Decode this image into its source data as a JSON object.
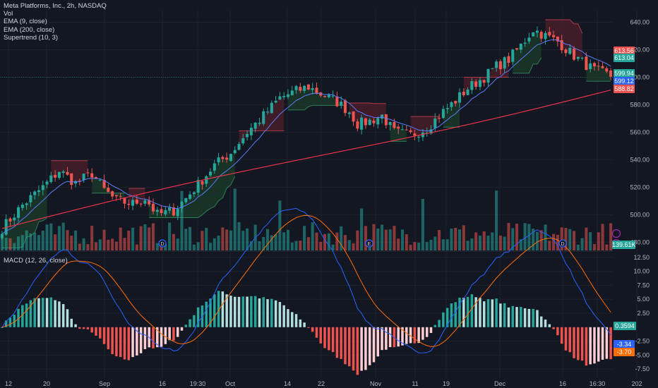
{
  "legend": {
    "title": "Meta Platforms, Inc., 2h, NASDAQ",
    "vol": "Vol",
    "ema_fast": "EMA (9, close)",
    "ema_slow": "EMA (200, close)",
    "supertrend": "Supertrend (10, 3)",
    "macd": "MACD (12, 26, close)"
  },
  "badges": {
    "st_upper": "613.56",
    "st_lower": "613.04",
    "price": "599.94",
    "ema9": "599.12",
    "ema200": "588.82",
    "volume": "139.61K",
    "histogram": "0.3594",
    "macd": "-3.34",
    "signal": "-3.70"
  },
  "colors": {
    "background": "#131722",
    "up": "#26a69a",
    "down": "#ef5350",
    "ema9": "#5b7cf5",
    "ema200": "#e8334a",
    "st_up_fill": "#1b3a2a",
    "st_down_fill": "#4a1e2a",
    "macd_line": "#2962ff",
    "signal_line": "#ff6d00",
    "axis_text": "#b2b5be"
  },
  "chart_data": {
    "type": "candlestick",
    "symbol": "META",
    "interval": "2h",
    "x_ticks": [
      "12",
      "20",
      "Sep",
      "16",
      "19:30",
      "Oct",
      "14",
      "22",
      "Nov",
      "11",
      "19",
      "Dec",
      "16",
      "16:30",
      "202"
    ],
    "price_axis": {
      "ticks": [
        "640.00",
        "620.00",
        "600.00",
        "580.00",
        "560.00",
        "540.00",
        "520.00",
        "500.00",
        "480.00"
      ],
      "ylim": [
        474,
        650
      ]
    },
    "macd_axis": {
      "ticks": [
        "12.50",
        "10.00",
        "7.50",
        "5.00",
        "2.50",
        "-2.50",
        "-5.00",
        "-7.50"
      ],
      "ylim": [
        -9,
        13.5
      ]
    },
    "close_path": [
      [
        0,
        490
      ],
      [
        5,
        507
      ],
      [
        10,
        520
      ],
      [
        14,
        532
      ],
      [
        18,
        523
      ],
      [
        22,
        530
      ],
      [
        25,
        518
      ],
      [
        28,
        510
      ],
      [
        32,
        508
      ],
      [
        35,
        512
      ],
      [
        38,
        500
      ],
      [
        42,
        503
      ],
      [
        45,
        512
      ],
      [
        48,
        522
      ],
      [
        52,
        536
      ],
      [
        56,
        545
      ],
      [
        60,
        560
      ],
      [
        64,
        572
      ],
      [
        68,
        585
      ],
      [
        72,
        590
      ],
      [
        75,
        593
      ],
      [
        78,
        588
      ],
      [
        82,
        582
      ],
      [
        85,
        575
      ],
      [
        87,
        566
      ],
      [
        90,
        568
      ],
      [
        93,
        572
      ],
      [
        96,
        560
      ],
      [
        100,
        558
      ],
      [
        104,
        563
      ],
      [
        108,
        575
      ],
      [
        111,
        583
      ],
      [
        114,
        592
      ],
      [
        118,
        600
      ],
      [
        121,
        608
      ],
      [
        124,
        613
      ],
      [
        127,
        623
      ],
      [
        130,
        635
      ],
      [
        133,
        630
      ],
      [
        136,
        626
      ],
      [
        139,
        618
      ],
      [
        142,
        611
      ],
      [
        145,
        605
      ],
      [
        148,
        602
      ],
      [
        150,
        600
      ]
    ],
    "series": [
      {
        "name": "EMA (9, close)"
      },
      {
        "name": "EMA (200, close)"
      },
      {
        "name": "Supertrend (10, 3)"
      },
      {
        "name": "MACD (12, 26, close)"
      }
    ],
    "markers": [
      "D",
      "E",
      "D"
    ]
  }
}
